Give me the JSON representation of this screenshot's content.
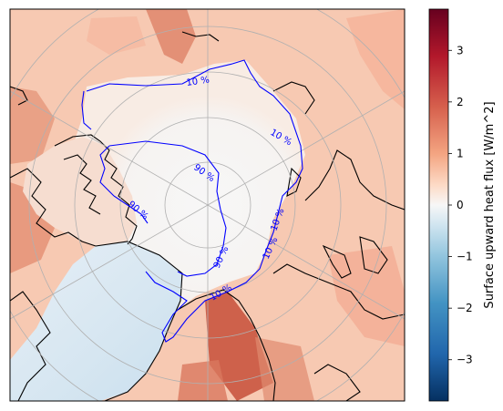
{
  "map": {
    "projection": "north-polar-stereographic",
    "graticule": true,
    "coastlines": true,
    "variable_shading": "Surface upward heat flux",
    "contours": [
      {
        "level_label": "10 %",
        "color": "#0000ff"
      },
      {
        "level_label": "90 %",
        "color": "#0000ff"
      }
    ],
    "contour_labels": [
      "10 %",
      "10 %",
      "10 %",
      "10 %",
      "10 %",
      "90 %",
      "90 %",
      "90 %"
    ]
  },
  "colorbar": {
    "label": "Surface upward heat flux [W/m^2]",
    "colormap": "RdBu_r",
    "range": [
      -3.8,
      3.8
    ],
    "ticks": [
      {
        "value": 3,
        "label": "3"
      },
      {
        "value": 2,
        "label": "2"
      },
      {
        "value": 1,
        "label": "1"
      },
      {
        "value": 0,
        "label": "0"
      },
      {
        "value": -1,
        "label": "−1"
      },
      {
        "value": -2,
        "label": "−2"
      },
      {
        "value": -3,
        "label": "−3"
      }
    ],
    "colors": {
      "max": "#67001f",
      "high": "#d6604d",
      "mid_high": "#f4a582",
      "zero": "#f7f7f7",
      "mid_low": "#92c5de",
      "low": "#4393c3",
      "min": "#053061"
    }
  }
}
